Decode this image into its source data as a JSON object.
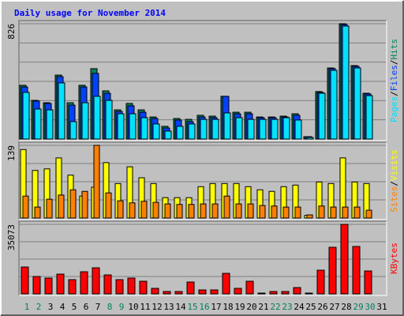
{
  "chart_data": [
    {
      "type": "bar",
      "title": "Daily usage for November 2014",
      "categories": [
        "1",
        "2",
        "3",
        "4",
        "5",
        "6",
        "7",
        "8",
        "9",
        "10",
        "11",
        "12",
        "13",
        "14",
        "15",
        "16",
        "17",
        "18",
        "19",
        "20",
        "21",
        "22",
        "23",
        "24",
        "25",
        "26",
        "27",
        "28",
        "29",
        "30",
        "31"
      ],
      "highlight": [
        0,
        1,
        7,
        8,
        14,
        15,
        21,
        22,
        28,
        29
      ],
      "highlight_color": "#00805c",
      "separator": "/",
      "ylim": [
        0,
        826
      ],
      "yticks": [
        826
      ],
      "series": [
        {
          "name": "Hits",
          "color": "#00805c",
          "values": [
            385,
            277,
            260,
            458,
            260,
            385,
            504,
            345,
            209,
            255,
            209,
            158,
            91,
            147,
            141,
            170,
            164,
            306,
            192,
            192,
            158,
            158,
            164,
            181,
            17,
            340,
            509,
            826,
            526,
            328,
            0
          ]
        },
        {
          "name": "Files",
          "color": "#0040ff",
          "values": [
            373,
            272,
            255,
            447,
            243,
            373,
            470,
            328,
            198,
            238,
            192,
            147,
            79,
            136,
            125,
            158,
            153,
            306,
            181,
            181,
            153,
            153,
            158,
            170,
            17,
            334,
            504,
            820,
            521,
            323,
            0
          ]
        },
        {
          "name": "Pages",
          "color": "#00e0ff",
          "values": [
            334,
            215,
            209,
            402,
            125,
            260,
            306,
            277,
            181,
            181,
            153,
            108,
            57,
            91,
            108,
            141,
            141,
            187,
            153,
            141,
            141,
            141,
            153,
            136,
            11,
            328,
            492,
            809,
            509,
            311,
            0
          ]
        }
      ]
    },
    {
      "type": "bar",
      "ylim": [
        0,
        139
      ],
      "yticks": [
        139
      ],
      "series": [
        {
          "name": "Visits",
          "color": "#ffff00",
          "values": [
            131,
            91,
            94,
            115,
            82,
            42,
            59,
            106,
            66,
            98,
            77,
            66,
            39,
            39,
            39,
            60,
            66,
            66,
            66,
            60,
            54,
            51,
            60,
            63,
            5,
            69,
            66,
            115,
            69,
            66,
            0
          ]
        },
        {
          "name": "Sites",
          "color": "#ff8000",
          "values": [
            42,
            21,
            36,
            44,
            54,
            51,
            139,
            48,
            33,
            29,
            32,
            30,
            27,
            26,
            26,
            27,
            27,
            42,
            27,
            27,
            24,
            23,
            21,
            21,
            6,
            23,
            21,
            21,
            21,
            15,
            0
          ]
        }
      ]
    },
    {
      "type": "bar",
      "ylim": [
        0,
        35073
      ],
      "yticks": [
        35073
      ],
      "series": [
        {
          "name": "KBytes",
          "color": "#ff0000",
          "values": [
            13552,
            8769,
            7972,
            9965,
            7175,
            11161,
            13154,
            9566,
            7175,
            7972,
            6378,
            2790,
            1196,
            1196,
            5979,
            1993,
            1993,
            10364,
            2790,
            6378,
            399,
            1196,
            1196,
            3189,
            399,
            11958,
            23517,
            35073,
            23916,
            11560,
            0
          ]
        }
      ]
    }
  ]
}
